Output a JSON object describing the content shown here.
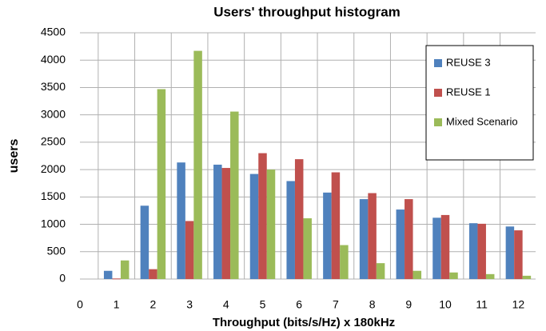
{
  "chart_data": {
    "type": "bar",
    "title": "Users' throughput histogram",
    "xlabel": "Throughput (bits/s/Hz) x 180kHz",
    "ylabel": "users",
    "categories": [
      "0",
      "1",
      "2",
      "3",
      "4",
      "5",
      "6",
      "7",
      "8",
      "9",
      "10",
      "11",
      "12"
    ],
    "series": [
      {
        "name": "REUSE 3",
        "color": "#4f81bd",
        "values": [
          null,
          150,
          1340,
          2130,
          2090,
          1920,
          1790,
          1580,
          1460,
          1270,
          1120,
          1020,
          960
        ]
      },
      {
        "name": "REUSE 1",
        "color": "#c0504d",
        "values": [
          null,
          10,
          180,
          1060,
          2030,
          2300,
          2190,
          1950,
          1570,
          1460,
          1170,
          1010,
          890
        ]
      },
      {
        "name": "Mixed Scenario",
        "color": "#9bbb59",
        "values": [
          null,
          340,
          3470,
          4170,
          3060,
          2000,
          1110,
          620,
          290,
          150,
          120,
          90,
          60
        ]
      }
    ],
    "ylim": [
      0,
      4500
    ],
    "yticks": [
      0,
      500,
      1000,
      1500,
      2000,
      2500,
      3000,
      3500,
      4000,
      4500
    ],
    "grid": true,
    "legend": "right"
  }
}
